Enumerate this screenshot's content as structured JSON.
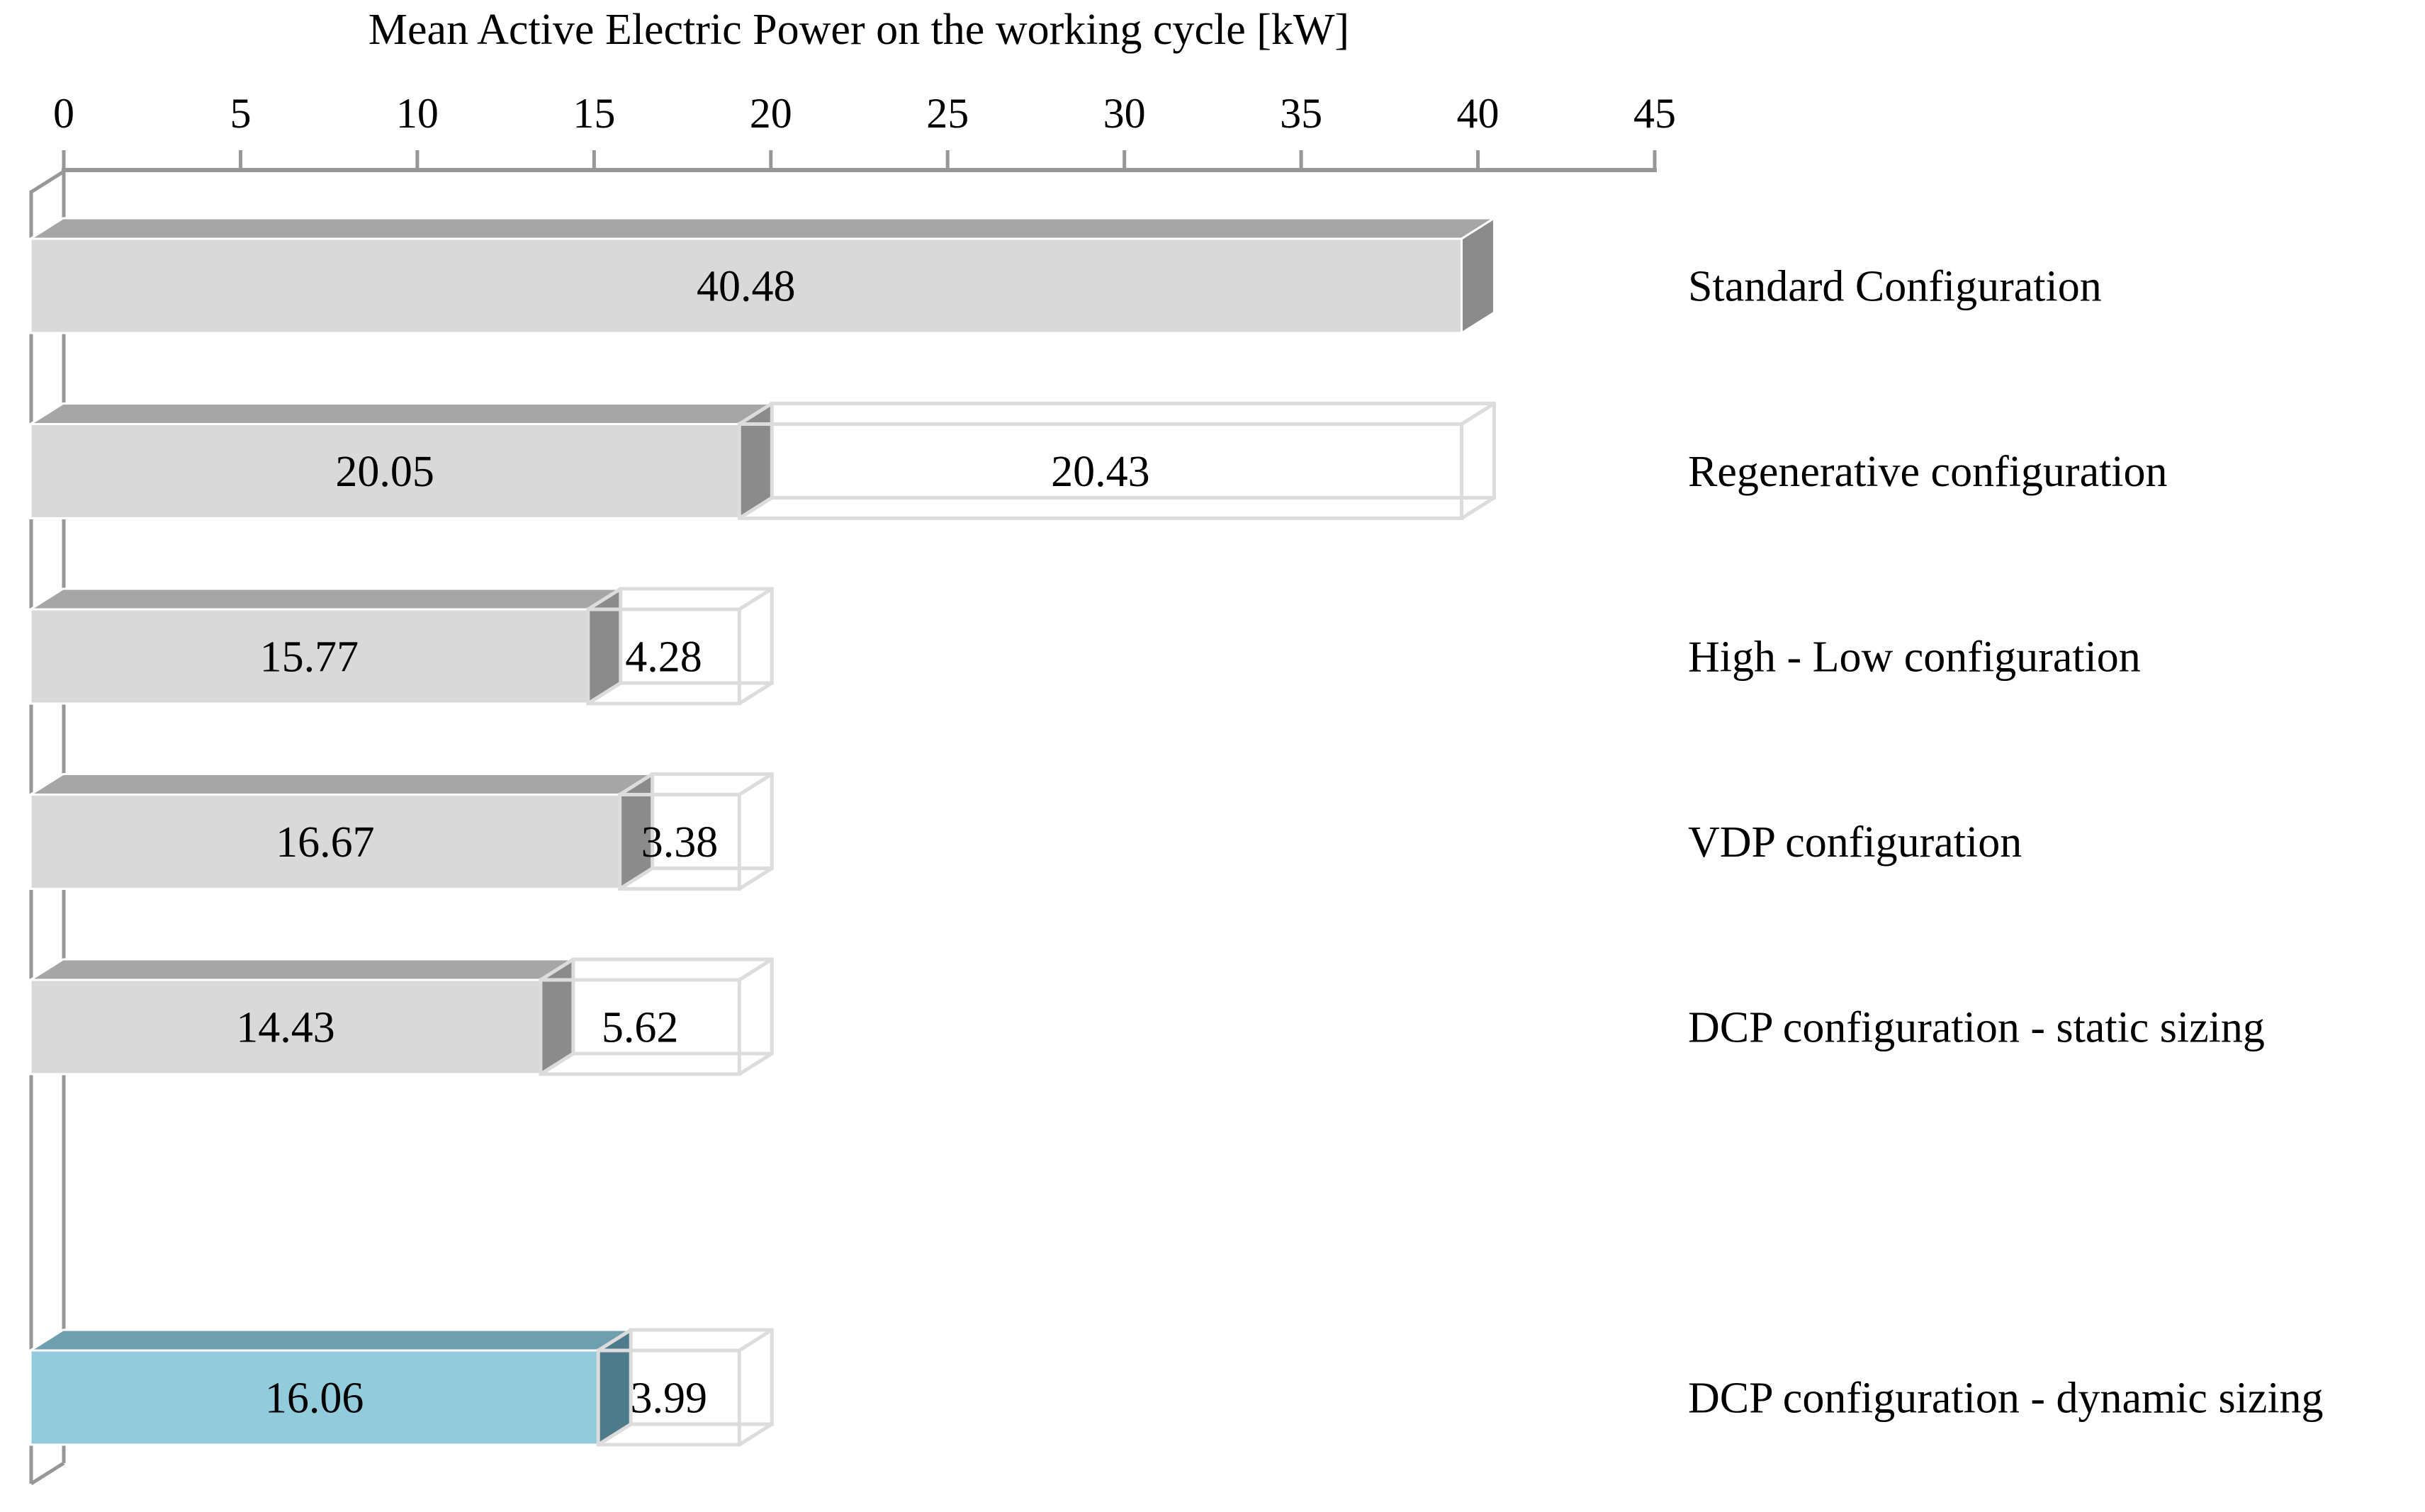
{
  "chart_data": {
    "type": "bar",
    "orientation": "horizontal",
    "style": "3d-excel",
    "title": "Mean Active Electric Power on the working cycle [kW]",
    "xlabel": "Mean Active Electric Power on the working cycle [kW]",
    "ylabel": "",
    "xlim": [
      0,
      45
    ],
    "x_ticks": [
      0,
      5,
      10,
      15,
      20,
      25,
      30,
      35,
      40,
      45
    ],
    "grid": false,
    "legend": "none",
    "value_label_decimals": 2,
    "categories": [
      "Standard Configuration",
      "Regenerative configuration",
      "High - Low configuration",
      "VDP configuration",
      "DCP configuration - static sizing",
      "DCP configuration - dynamic sizing"
    ],
    "series": [
      {
        "name": "solid-consumed-power",
        "values": [
          40.48,
          20.05,
          15.77,
          16.67,
          14.43,
          16.06
        ]
      },
      {
        "name": "hollow-saved-power",
        "values": [
          null,
          20.43,
          4.28,
          3.38,
          5.62,
          3.99
        ]
      }
    ],
    "rows": [
      {
        "label": "Standard Configuration",
        "solid": 40.48,
        "hollow": null,
        "palette": "gray",
        "slot": 0
      },
      {
        "label": "Regenerative configuration",
        "solid": 20.05,
        "hollow": 20.43,
        "palette": "gray",
        "slot": 1
      },
      {
        "label": "High - Low configuration",
        "solid": 15.77,
        "hollow": 4.28,
        "palette": "gray",
        "slot": 2
      },
      {
        "label": "VDP configuration",
        "solid": 16.67,
        "hollow": 3.38,
        "palette": "gray",
        "slot": 3
      },
      {
        "label": "DCP configuration - static sizing",
        "solid": 14.43,
        "hollow": 5.62,
        "palette": "gray",
        "slot": 4
      },
      {
        "label": "DCP configuration - dynamic sizing",
        "solid": 16.06,
        "hollow": 3.99,
        "palette": "blue",
        "slot": 6
      }
    ],
    "colors": {
      "gray": {
        "front": "#d9d9d9",
        "top": "#a6a6a6",
        "side": "#8b8b8b"
      },
      "blue": {
        "front": "#92cbdc",
        "top": "#6d9fae",
        "side": "#4e7b8c"
      },
      "wireframe": "#dcdcdc",
      "axis": "#979797",
      "face_edge": "#ffffff",
      "text": "#000000"
    }
  }
}
